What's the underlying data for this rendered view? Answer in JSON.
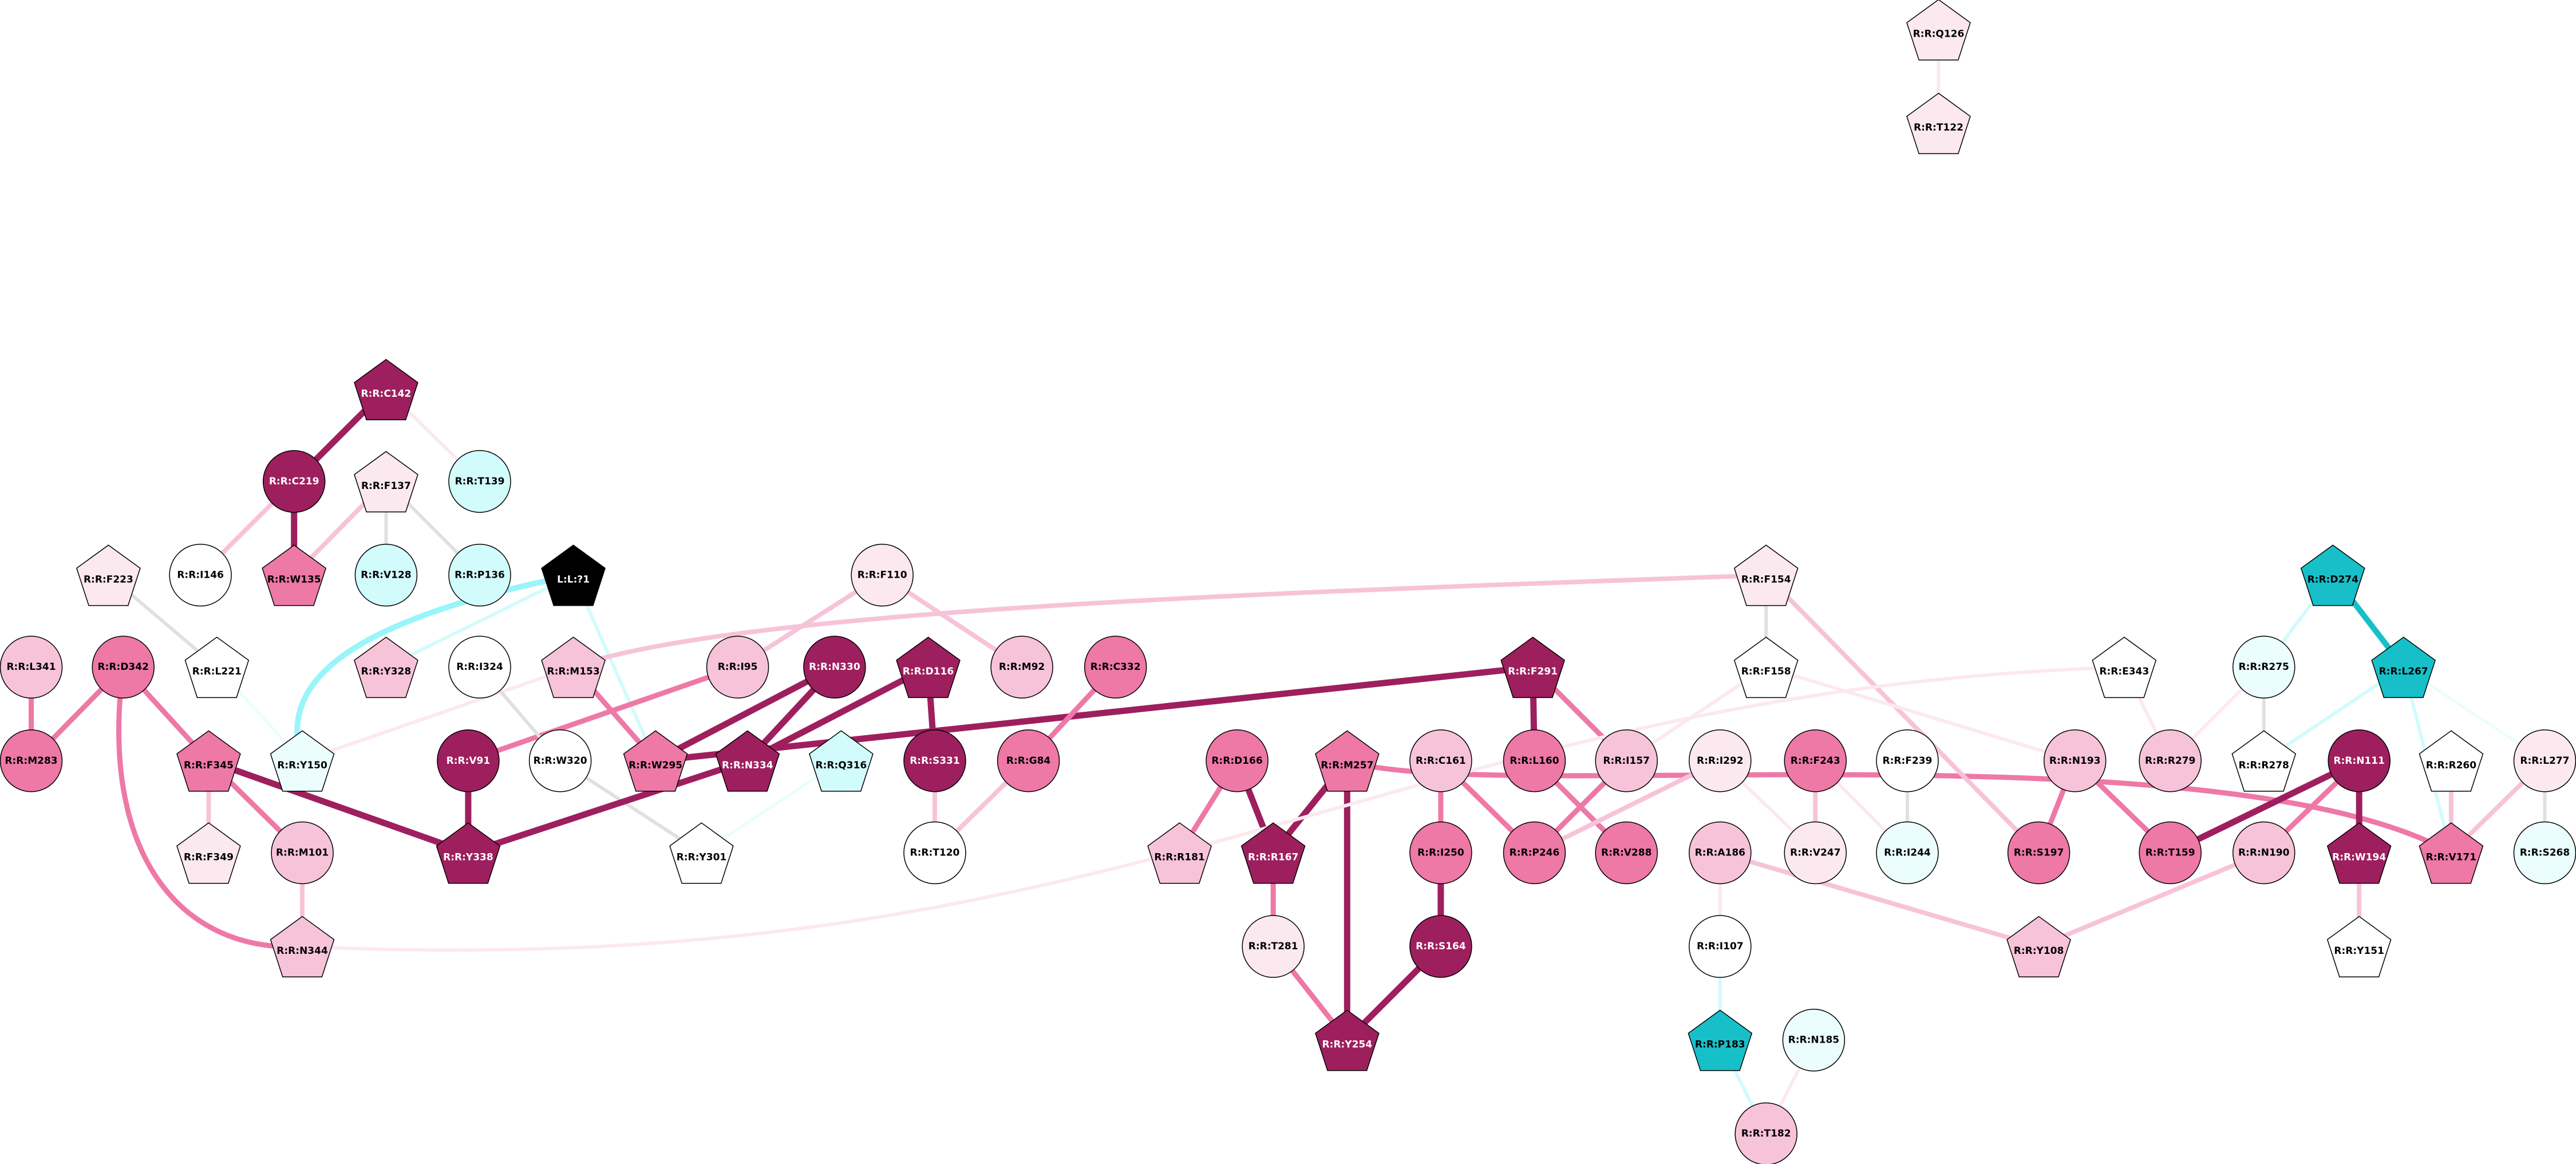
{
  "nodes": [
    {
      "label": "R:R:Q126",
      "shape": "pentagon",
      "color": "#fce9f0"
    },
    {
      "label": "R:R:T122",
      "shape": "pentagon",
      "color": "#fce9f0"
    },
    {
      "label": "R:R:C142",
      "shape": "pentagon",
      "color": "#9e1f5e"
    },
    {
      "label": "R:R:C219",
      "shape": "circle",
      "color": "#9e1f5e"
    },
    {
      "label": "R:R:F137",
      "shape": "pentagon",
      "color": "#fce9f0"
    },
    {
      "label": "R:R:T139",
      "shape": "circle",
      "color": "#d2fbfc"
    },
    {
      "label": "R:R:I146",
      "shape": "circle",
      "color": "#ffffff"
    },
    {
      "label": "R:R:W135",
      "shape": "pentagon",
      "color": "#ee78a6"
    },
    {
      "label": "R:R:V128",
      "shape": "circle",
      "color": "#d2fbfc"
    },
    {
      "label": "R:R:P136",
      "shape": "circle",
      "color": "#d2fbfc"
    },
    {
      "label": "R:R:F223",
      "shape": "pentagon",
      "color": "#fce9f0"
    },
    {
      "label": "L:L:?1",
      "shape": "pentagon",
      "color": "#000000"
    },
    {
      "label": "R:R:F110",
      "shape": "circle",
      "color": "#fce9f0"
    },
    {
      "label": "R:R:F154",
      "shape": "pentagon",
      "color": "#fce9f0"
    },
    {
      "label": "R:R:D274",
      "shape": "pentagon",
      "color": "#17c0c9"
    },
    {
      "label": "R:R:L341",
      "shape": "circle",
      "color": "#f7c3d8"
    },
    {
      "label": "R:R:D342",
      "shape": "circle",
      "color": "#ee78a6"
    },
    {
      "label": "R:R:L221",
      "shape": "pentagon",
      "color": "#ffffff"
    },
    {
      "label": "R:R:Y328",
      "shape": "pentagon",
      "color": "#f7c3d8"
    },
    {
      "label": "R:R:I324",
      "shape": "circle",
      "color": "#ffffff"
    },
    {
      "label": "R:R:M153",
      "shape": "pentagon",
      "color": "#f7c3d8"
    },
    {
      "label": "R:R:I95",
      "shape": "circle",
      "color": "#f7c3d8"
    },
    {
      "label": "R:R:N330",
      "shape": "circle",
      "color": "#9e1f5e"
    },
    {
      "label": "R:R:D116",
      "shape": "pentagon",
      "color": "#9e1f5e"
    },
    {
      "label": "R:R:M92",
      "shape": "circle",
      "color": "#f7c3d8"
    },
    {
      "label": "R:R:C332",
      "shape": "circle",
      "color": "#ee78a6"
    },
    {
      "label": "R:R:F291",
      "shape": "pentagon",
      "color": "#9e1f5e"
    },
    {
      "label": "R:R:F158",
      "shape": "pentagon",
      "color": "#ffffff"
    },
    {
      "label": "R:R:E343",
      "shape": "pentagon",
      "color": "#ffffff"
    },
    {
      "label": "R:R:R275",
      "shape": "circle",
      "color": "#ebfdfd"
    },
    {
      "label": "R:R:L267",
      "shape": "pentagon",
      "color": "#17c0c9"
    },
    {
      "label": "R:R:M283",
      "shape": "circle",
      "color": "#ee78a6"
    },
    {
      "label": "R:R:F345",
      "shape": "pentagon",
      "color": "#ee78a6"
    },
    {
      "label": "R:R:Y150",
      "shape": "pentagon",
      "color": "#ebfdfd"
    },
    {
      "label": "R:R:V91",
      "shape": "circle",
      "color": "#9e1f5e"
    },
    {
      "label": "R:R:W320",
      "shape": "circle",
      "color": "#ffffff"
    },
    {
      "label": "R:R:W295",
      "shape": "pentagon",
      "color": "#ee78a6"
    },
    {
      "label": "R:R:N334",
      "shape": "pentagon",
      "color": "#9e1f5e"
    },
    {
      "label": "R:R:Q316",
      "shape": "pentagon",
      "color": "#d2fbfc"
    },
    {
      "label": "R:R:S331",
      "shape": "circle",
      "color": "#9e1f5e"
    },
    {
      "label": "R:R:G84",
      "shape": "circle",
      "color": "#ee78a6"
    },
    {
      "label": "R:R:D166",
      "shape": "circle",
      "color": "#ee78a6"
    },
    {
      "label": "R:R:M257",
      "shape": "pentagon",
      "color": "#ee78a6"
    },
    {
      "label": "R:R:C161",
      "shape": "circle",
      "color": "#f7c3d8"
    },
    {
      "label": "R:R:L160",
      "shape": "circle",
      "color": "#ee78a6"
    },
    {
      "label": "R:R:I157",
      "shape": "circle",
      "color": "#f7c3d8"
    },
    {
      "label": "R:R:I292",
      "shape": "circle",
      "color": "#fce9f0"
    },
    {
      "label": "R:R:F243",
      "shape": "circle",
      "color": "#ee78a6"
    },
    {
      "label": "R:R:F239",
      "shape": "circle",
      "color": "#ffffff"
    },
    {
      "label": "R:R:N193",
      "shape": "circle",
      "color": "#f7c3d8"
    },
    {
      "label": "R:R:R279",
      "shape": "circle",
      "color": "#f7c3d8"
    },
    {
      "label": "R:R:R278",
      "shape": "pentagon",
      "color": "#ffffff"
    },
    {
      "label": "R:R:N111",
      "shape": "circle",
      "color": "#9e1f5e"
    },
    {
      "label": "R:R:R260",
      "shape": "pentagon",
      "color": "#ffffff"
    },
    {
      "label": "R:R:L277",
      "shape": "circle",
      "color": "#fce9f0"
    },
    {
      "label": "R:R:F349",
      "shape": "pentagon",
      "color": "#fce9f0"
    },
    {
      "label": "R:R:M101",
      "shape": "circle",
      "color": "#f7c3d8"
    },
    {
      "label": "R:R:Y338",
      "shape": "pentagon",
      "color": "#9e1f5e"
    },
    {
      "label": "R:R:Y301",
      "shape": "pentagon",
      "color": "#ffffff"
    },
    {
      "label": "R:R:T120",
      "shape": "circle",
      "color": "#ffffff"
    },
    {
      "label": "R:R:R181",
      "shape": "pentagon",
      "color": "#f7c3d8"
    },
    {
      "label": "R:R:R167",
      "shape": "pentagon",
      "color": "#9e1f5e"
    },
    {
      "label": "R:R:I250",
      "shape": "circle",
      "color": "#ee78a6"
    },
    {
      "label": "R:R:P246",
      "shape": "circle",
      "color": "#ee78a6"
    },
    {
      "label": "R:R:V288",
      "shape": "circle",
      "color": "#ee78a6"
    },
    {
      "label": "R:R:V247",
      "shape": "circle",
      "color": "#fce9f0"
    },
    {
      "label": "R:R:I244",
      "shape": "circle",
      "color": "#ebfdfd"
    },
    {
      "label": "R:R:S197",
      "shape": "circle",
      "color": "#ee78a6"
    },
    {
      "label": "R:R:T159",
      "shape": "circle",
      "color": "#ee78a6"
    },
    {
      "label": "R:R:N190",
      "shape": "circle",
      "color": "#f7c3d8"
    },
    {
      "label": "R:R:W194",
      "shape": "pentagon",
      "color": "#9e1f5e"
    },
    {
      "label": "R:R:V171",
      "shape": "pentagon",
      "color": "#ee78a6"
    },
    {
      "label": "R:R:S268",
      "shape": "circle",
      "color": "#ebfdfd"
    },
    {
      "label": "R:R:N344",
      "shape": "pentagon",
      "color": "#f7c3d8"
    },
    {
      "label": "R:R:T281",
      "shape": "circle",
      "color": "#fce9f0"
    },
    {
      "label": "R:R:S164",
      "shape": "circle",
      "color": "#9e1f5e"
    },
    {
      "label": "R:R:A186",
      "shape": "circle",
      "color": "#f7c3d8"
    },
    {
      "label": "R:R:Y108",
      "shape": "pentagon",
      "color": "#f7c3d8"
    },
    {
      "label": "R:R:Y151",
      "shape": "pentagon",
      "color": "#ffffff"
    },
    {
      "label": "R:R:I107",
      "shape": "circle",
      "color": "#ffffff"
    },
    {
      "label": "R:R:Y254",
      "shape": "pentagon",
      "color": "#9e1f5e"
    },
    {
      "label": "R:R:P183",
      "shape": "pentagon",
      "color": "#17c0c9"
    },
    {
      "label": "R:R:N185",
      "shape": "circle",
      "color": "#ebfdfd"
    },
    {
      "label": "R:R:T182",
      "shape": "circle",
      "color": "#f7c3d8"
    }
  ],
  "edges": [
    {
      "source": 0,
      "target": 1,
      "color": "#fce9f0"
    },
    {
      "source": 2,
      "target": 3,
      "color": "#9e1f5e"
    },
    {
      "source": 2,
      "target": 5,
      "color": "#fce9f0"
    },
    {
      "source": 3,
      "target": 6,
      "color": "#f7c3d8"
    },
    {
      "source": 3,
      "target": 7,
      "color": "#9e1f5e"
    },
    {
      "source": 4,
      "target": 7,
      "color": "#f7c3d8"
    },
    {
      "source": 4,
      "target": 8,
      "color": "#e0e0e0"
    },
    {
      "source": 4,
      "target": 9,
      "color": "#e0e0e0"
    },
    {
      "source": 10,
      "target": 17,
      "color": "#e0e0e0"
    },
    {
      "source": 17,
      "target": 33,
      "color": "#ebfdfd"
    },
    {
      "source": 11,
      "target": 33,
      "color": "#99f5fa"
    },
    {
      "source": 11,
      "target": 18,
      "color": "#d2fbfc"
    },
    {
      "source": 11,
      "target": 36,
      "color": "#d2fbfc"
    },
    {
      "source": 15,
      "target": 31,
      "color": "#ee78a6"
    },
    {
      "source": 16,
      "target": 31,
      "color": "#ee78a6"
    },
    {
      "source": 16,
      "target": 32,
      "color": "#ee78a6"
    },
    {
      "source": 16,
      "target": 73,
      "color": "#ee78a6"
    },
    {
      "source": 32,
      "target": 55,
      "color": "#f7c3d8"
    },
    {
      "source": 32,
      "target": 56,
      "color": "#ee78a6"
    },
    {
      "source": 32,
      "target": 57,
      "color": "#9e1f5e"
    },
    {
      "source": 56,
      "target": 73,
      "color": "#f7c3d8"
    },
    {
      "source": 20,
      "target": 33,
      "color": "#fce9f0"
    },
    {
      "source": 20,
      "target": 36,
      "color": "#ee78a6"
    },
    {
      "source": 13,
      "target": 20,
      "color": "#f7c3d8"
    },
    {
      "source": 21,
      "target": 34,
      "color": "#ee78a6"
    },
    {
      "source": 21,
      "target": 12,
      "color": "#f7c3d8"
    },
    {
      "source": 12,
      "target": 24,
      "color": "#f7c3d8"
    },
    {
      "source": 22,
      "target": 36,
      "color": "#9e1f5e"
    },
    {
      "source": 22,
      "target": 37,
      "color": "#9e1f5e"
    },
    {
      "source": 23,
      "target": 37,
      "color": "#9e1f5e"
    },
    {
      "source": 23,
      "target": 39,
      "color": "#9e1f5e"
    },
    {
      "source": 19,
      "target": 35,
      "color": "#e0e0e0"
    },
    {
      "source": 35,
      "target": 58,
      "color": "#e0e0e0"
    },
    {
      "source": 38,
      "target": 58,
      "color": "#ebfdfd"
    },
    {
      "source": 34,
      "target": 57,
      "color": "#9e1f5e"
    },
    {
      "source": 37,
      "target": 57,
      "color": "#9e1f5e"
    },
    {
      "source": 26,
      "target": 36,
      "color": "#9e1f5e"
    },
    {
      "source": 26,
      "target": 44,
      "color": "#9e1f5e"
    },
    {
      "source": 26,
      "target": 45,
      "color": "#ee78a6"
    },
    {
      "source": 39,
      "target": 59,
      "color": "#f7c3d8"
    },
    {
      "source": 25,
      "target": 40,
      "color": "#ee78a6"
    },
    {
      "source": 40,
      "target": 59,
      "color": "#f7c3d8"
    },
    {
      "source": 41,
      "target": 60,
      "color": "#ee78a6"
    },
    {
      "source": 41,
      "target": 61,
      "color": "#9e1f5e"
    },
    {
      "source": 42,
      "target": 61,
      "color": "#9e1f5e"
    },
    {
      "source": 42,
      "target": 80,
      "color": "#9e1f5e"
    },
    {
      "source": 42,
      "target": 71,
      "color": "#ee78a6"
    },
    {
      "source": 61,
      "target": 74,
      "color": "#ee78a6"
    },
    {
      "source": 74,
      "target": 80,
      "color": "#ee78a6"
    },
    {
      "source": 43,
      "target": 62,
      "color": "#ee78a6"
    },
    {
      "source": 43,
      "target": 63,
      "color": "#ee78a6"
    },
    {
      "source": 62,
      "target": 75,
      "color": "#9e1f5e"
    },
    {
      "source": 75,
      "target": 80,
      "color": "#9e1f5e"
    },
    {
      "source": 44,
      "target": 64,
      "color": "#ee78a6"
    },
    {
      "source": 45,
      "target": 63,
      "color": "#ee78a6"
    },
    {
      "source": 45,
      "target": 27,
      "color": "#fce9f0"
    },
    {
      "source": 13,
      "target": 27,
      "color": "#e0e0e0"
    },
    {
      "source": 13,
      "target": 67,
      "color": "#f7c3d8"
    },
    {
      "source": 27,
      "target": 49,
      "color": "#fce9f0"
    },
    {
      "source": 46,
      "target": 65,
      "color": "#fce9f0"
    },
    {
      "source": 46,
      "target": 63,
      "color": "#f7c3d8"
    },
    {
      "source": 47,
      "target": 65,
      "color": "#f7c3d8"
    },
    {
      "source": 47,
      "target": 66,
      "color": "#fce9f0"
    },
    {
      "source": 48,
      "target": 66,
      "color": "#e0e0e0"
    },
    {
      "source": 76,
      "target": 79,
      "color": "#fce9f0"
    },
    {
      "source": 76,
      "target": 77,
      "color": "#f7c3d8"
    },
    {
      "source": 79,
      "target": 81,
      "color": "#d2fbfc"
    },
    {
      "source": 81,
      "target": 83,
      "color": "#d2fbfc"
    },
    {
      "source": 82,
      "target": 83,
      "color": "#fce9f0"
    },
    {
      "source": 49,
      "target": 67,
      "color": "#ee78a6"
    },
    {
      "source": 49,
      "target": 68,
      "color": "#ee78a6"
    },
    {
      "source": 28,
      "target": 50,
      "color": "#fce9f0"
    },
    {
      "source": 73,
      "target": 28,
      "color": "#fce9f0"
    },
    {
      "source": 29,
      "target": 50,
      "color": "#fce9f0"
    },
    {
      "source": 29,
      "target": 51,
      "color": "#e0e0e0"
    },
    {
      "source": 14,
      "target": 29,
      "color": "#d2fbfc"
    },
    {
      "source": 14,
      "target": 30,
      "color": "#17c0c9"
    },
    {
      "source": 30,
      "target": 51,
      "color": "#d2fbfc"
    },
    {
      "source": 30,
      "target": 71,
      "color": "#d2fbfc"
    },
    {
      "source": 30,
      "target": 54,
      "color": "#ebfdfd"
    },
    {
      "source": 52,
      "target": 68,
      "color": "#9e1f5e"
    },
    {
      "source": 52,
      "target": 69,
      "color": "#ee78a6"
    },
    {
      "source": 52,
      "target": 70,
      "color": "#9e1f5e"
    },
    {
      "source": 69,
      "target": 77,
      "color": "#f7c3d8"
    },
    {
      "source": 70,
      "target": 78,
      "color": "#f7c3d8"
    },
    {
      "source": 53,
      "target": 71,
      "color": "#f7c3d8"
    },
    {
      "source": 54,
      "target": 71,
      "color": "#f7c3d8"
    },
    {
      "source": 54,
      "target": 72,
      "color": "#e0e0e0"
    }
  ]
}
